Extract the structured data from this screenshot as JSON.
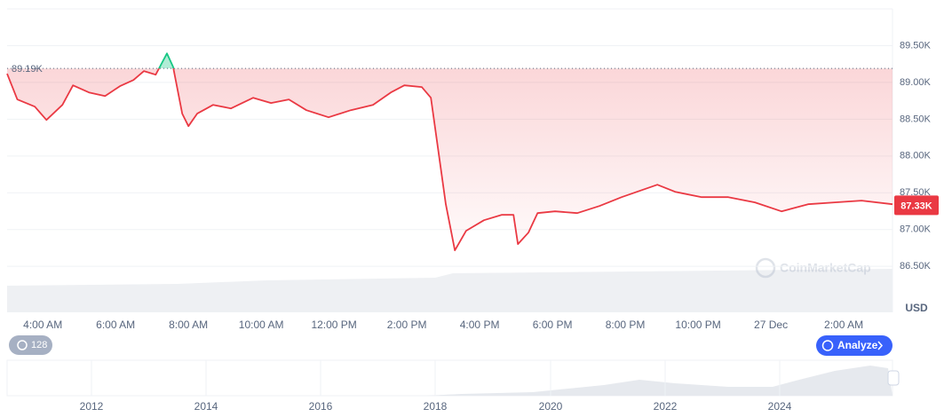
{
  "chart_data": {
    "type": "line",
    "x": [
      3.02,
      3.3,
      3.78,
      4.1,
      4.54,
      4.83,
      5.27,
      5.71,
      6.12,
      6.49,
      6.78,
      7.1,
      7.41,
      7.58,
      7.83,
      8.0,
      8.24,
      8.68,
      9.17,
      9.78,
      10.27,
      10.76,
      11.24,
      11.85,
      12.46,
      13.07,
      13.56,
      13.93,
      14.41,
      14.66,
      14.9,
      15.07,
      15.32,
      15.63,
      16.12,
      16.61,
      16.93,
      17.05,
      17.34,
      17.59,
      18.07,
      18.68,
      19.29,
      19.9,
      20.39,
      20.88,
      21.37,
      22.1,
      22.83,
      23.56,
      24.29,
      25.02,
      25.76,
      26.49,
      27.34
    ],
    "values": [
      89118,
      88768,
      88671,
      88490,
      88695,
      88960,
      88864,
      88816,
      88950,
      89033,
      89154,
      89105,
      89395,
      89214,
      88575,
      88406,
      88575,
      88695,
      88647,
      88792,
      88720,
      88768,
      88623,
      88526,
      88623,
      88695,
      88864,
      88960,
      88937,
      88792,
      87948,
      87344,
      86717,
      86983,
      87127,
      87200,
      87200,
      86802,
      86958,
      87224,
      87248,
      87224,
      87320,
      87441,
      87525,
      87610,
      87513,
      87441,
      87441,
      87369,
      87248,
      87344,
      87369,
      87393,
      87344
    ],
    "color": "#ea3943",
    "up_color": "#16c784",
    "xlim": [
      3.02,
      27.34
    ],
    "xticks": [
      {
        "value": 4,
        "label": "4:00 AM"
      },
      {
        "value": 6,
        "label": "6:00 AM"
      },
      {
        "value": 8,
        "label": "8:00 AM"
      },
      {
        "value": 10,
        "label": "10:00 AM"
      },
      {
        "value": 12,
        "label": "12:00 PM"
      },
      {
        "value": 14,
        "label": "2:00 PM"
      },
      {
        "value": 16,
        "label": "4:00 PM"
      },
      {
        "value": 18,
        "label": "6:00 PM"
      },
      {
        "value": 20,
        "label": "8:00 PM"
      },
      {
        "value": 22,
        "label": "10:00 PM"
      },
      {
        "value": 24,
        "label": "27 Dec"
      },
      {
        "value": 26,
        "label": "2:00 AM"
      }
    ],
    "ylim": [
      85875,
      90000
    ],
    "yticks": [
      {
        "value": 86500,
        "label": "86.50K"
      },
      {
        "value": 87000,
        "label": "87.00K"
      },
      {
        "value": 87500,
        "label": "87.50K"
      },
      {
        "value": 88000,
        "label": "88.00K"
      },
      {
        "value": 88500,
        "label": "88.50K"
      },
      {
        "value": 89000,
        "label": "89.00K"
      },
      {
        "value": 89500,
        "label": "89.50K"
      }
    ],
    "grid": true,
    "reference": {
      "value": 89190,
      "label": "89.19K"
    },
    "last_price": {
      "value": 87330,
      "label": "87.33K"
    },
    "y_unit": "USD",
    "navigator_years": [
      "2012",
      "2014",
      "2016",
      "2018",
      "2020",
      "2022",
      "2024"
    ],
    "badge": "128",
    "button": "Analyze",
    "watermark": "CoinMarketCap"
  }
}
